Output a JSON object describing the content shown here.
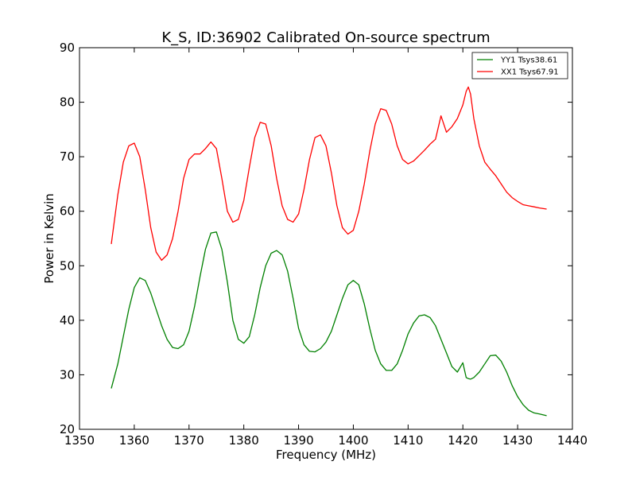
{
  "chart_data": {
    "type": "line",
    "title": "K_S, ID:36902 Calibrated On-source spectrum",
    "xlabel": "Frequency (MHz)",
    "ylabel": "Power in Kelvin",
    "xlim": [
      1350,
      1440
    ],
    "ylim": [
      20,
      90
    ],
    "xticks": [
      "1350",
      "1360",
      "1370",
      "1380",
      "1390",
      "1400",
      "1410",
      "1420",
      "1430",
      "1440"
    ],
    "yticks": [
      "20",
      "30",
      "40",
      "50",
      "60",
      "70",
      "80",
      "90"
    ],
    "grid": false,
    "legend_position": "top-right",
    "series": [
      {
        "name": "YY1 Tsys38.61",
        "color": "#008000",
        "x": [
          1355.8,
          1357,
          1358,
          1359,
          1360,
          1361,
          1362,
          1363,
          1364,
          1365,
          1366,
          1367,
          1368,
          1369,
          1370,
          1371,
          1372,
          1373,
          1374,
          1375,
          1376,
          1377,
          1378,
          1379,
          1380,
          1381,
          1382,
          1383,
          1384,
          1385,
          1386,
          1387,
          1388,
          1389,
          1390,
          1391,
          1392,
          1393,
          1394,
          1395,
          1396,
          1397,
          1398,
          1399,
          1400,
          1401,
          1402,
          1403,
          1404,
          1405,
          1406,
          1407,
          1408,
          1409,
          1410,
          1411,
          1412,
          1413,
          1414,
          1415,
          1416,
          1417,
          1418,
          1419,
          1420,
          1420.6,
          1421,
          1421.4,
          1422,
          1423,
          1424,
          1425,
          1426,
          1427,
          1428,
          1429,
          1430,
          1431,
          1432,
          1433,
          1434,
          1435.3
        ],
        "y": [
          27.5,
          32,
          37,
          42,
          46,
          47.8,
          47.3,
          45,
          42,
          39,
          36.5,
          35,
          34.8,
          35.5,
          38,
          42.5,
          48,
          53,
          56,
          56.2,
          53,
          47,
          40,
          36.5,
          35.8,
          37,
          41,
          46,
          50,
          52.3,
          52.8,
          52,
          49,
          44,
          38.5,
          35.5,
          34.3,
          34.2,
          34.8,
          36,
          38,
          41,
          44,
          46.5,
          47.3,
          46.5,
          43,
          38.5,
          34.5,
          32,
          30.8,
          30.8,
          32,
          34.5,
          37.5,
          39.5,
          40.8,
          41,
          40.5,
          39,
          36.5,
          34,
          31.5,
          30.5,
          32.2,
          29.5,
          29.3,
          29.2,
          29.5,
          30.5,
          32,
          33.5,
          33.6,
          32.5,
          30.5,
          28,
          26,
          24.5,
          23.5,
          23,
          22.8,
          22.5
        ]
      },
      {
        "name": "XX1 Tsys67.91",
        "color": "#ff0000",
        "x": [
          1355.8,
          1357,
          1358,
          1359,
          1360,
          1361,
          1362,
          1363,
          1364,
          1365,
          1366,
          1367,
          1368,
          1369,
          1370,
          1371,
          1372,
          1373,
          1374,
          1375,
          1376,
          1377,
          1378,
          1379,
          1380,
          1381,
          1382,
          1383,
          1384,
          1385,
          1386,
          1387,
          1388,
          1389,
          1390,
          1391,
          1392,
          1393,
          1394,
          1395,
          1396,
          1397,
          1398,
          1399,
          1400,
          1401,
          1402,
          1403,
          1404,
          1405,
          1406,
          1407,
          1408,
          1409,
          1410,
          1411,
          1412,
          1413,
          1414,
          1415,
          1416,
          1417,
          1418,
          1419,
          1420,
          1420.6,
          1421,
          1421.4,
          1422,
          1423,
          1424,
          1425,
          1426,
          1427,
          1428,
          1429,
          1430,
          1431,
          1432,
          1433,
          1434,
          1435.3
        ],
        "y": [
          54,
          63,
          69,
          72,
          72.5,
          70,
          64,
          57,
          52.5,
          51,
          52,
          55,
          60,
          66,
          69.5,
          70.5,
          70.5,
          71.5,
          72.7,
          71.5,
          66,
          60,
          58,
          58.5,
          62,
          68,
          73.5,
          76.3,
          76,
          72,
          66,
          61,
          58.5,
          58,
          59.5,
          64,
          69.5,
          73.5,
          74,
          72,
          67,
          61,
          57,
          55.8,
          56.5,
          60,
          65,
          71,
          76,
          78.8,
          78.5,
          76,
          72,
          69.5,
          68.7,
          69.2,
          70.2,
          71.2,
          72.3,
          73.2,
          77.5,
          74.5,
          75.5,
          77,
          79.5,
          82,
          82.8,
          81.5,
          77,
          72,
          69,
          67.7,
          66.5,
          65,
          63.5,
          62.5,
          61.8,
          61.2,
          61,
          60.8,
          60.6,
          60.4
        ]
      }
    ]
  }
}
